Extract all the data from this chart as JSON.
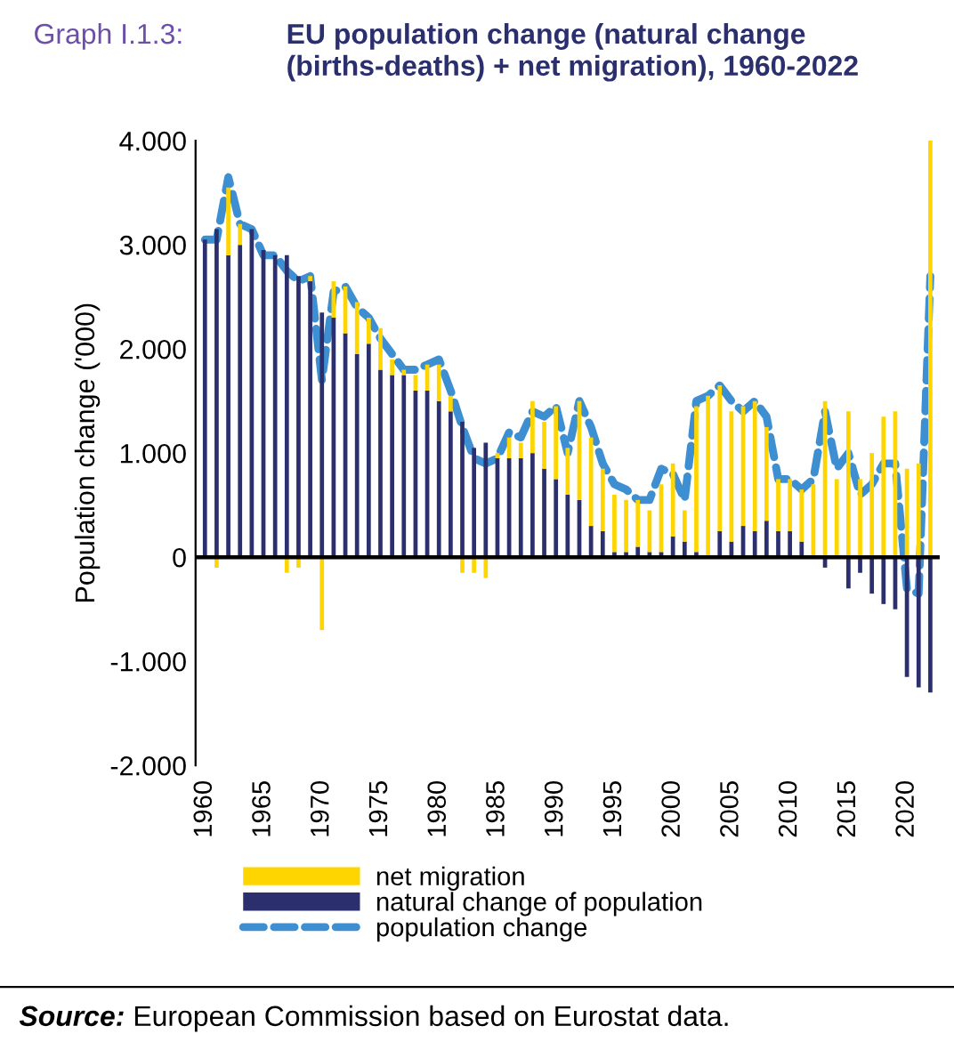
{
  "chart_data": {
    "type": "bar",
    "title": "EU population change (natural change (births-deaths) + net migration), 1960-2022",
    "ylabel": "Population change ('000)",
    "annotations": [
      "Graph I.1.3:",
      "Source: European Commission based on Eurostat data."
    ],
    "categories": [
      "1960",
      null,
      null,
      null,
      null,
      "1965",
      null,
      null,
      null,
      null,
      "1970",
      null,
      null,
      null,
      null,
      "1975",
      null,
      null,
      null,
      null,
      "1980",
      null,
      null,
      null,
      null,
      "1985",
      null,
      null,
      null,
      null,
      "1990",
      null,
      null,
      null,
      null,
      "1995",
      null,
      null,
      null,
      null,
      "2000",
      null,
      null,
      null,
      null,
      "2005",
      null,
      null,
      null,
      null,
      "2010",
      null,
      null,
      null,
      null,
      "2015",
      null,
      null,
      null,
      null,
      "2020",
      null,
      null
    ],
    "stacked": true,
    "series": [
      {
        "name": "natural change of population",
        "color": "#2b2f6e",
        "values": [
          3050,
          3150,
          2900,
          3000,
          3150,
          2950,
          2900,
          2900,
          2700,
          2650,
          2350,
          2300,
          2150,
          1950,
          2050,
          1800,
          1750,
          1750,
          1600,
          1600,
          1500,
          1400,
          1300,
          1050,
          1100,
          950,
          950,
          950,
          1000,
          850,
          750,
          600,
          550,
          300,
          250,
          50,
          50,
          100,
          50,
          50,
          200,
          150,
          50,
          0,
          250,
          150,
          300,
          250,
          350,
          250,
          250,
          150,
          0,
          -100,
          0,
          -300,
          -150,
          -350,
          -450,
          -500,
          -1150,
          -1250,
          -1300
        ]
      },
      {
        "name": "net migration",
        "color": "#ffd500",
        "values": [
          0,
          -100,
          650,
          200,
          0,
          0,
          0,
          -150,
          -100,
          50,
          -700,
          350,
          450,
          500,
          250,
          400,
          150,
          50,
          150,
          250,
          350,
          150,
          -150,
          -150,
          -200,
          50,
          200,
          150,
          500,
          450,
          700,
          450,
          950,
          850,
          600,
          550,
          500,
          450,
          400,
          650,
          700,
          300,
          1400,
          1550,
          1400,
          1250,
          1150,
          1250,
          900,
          500,
          500,
          500,
          700,
          1500,
          750,
          1400,
          750,
          1000,
          1350,
          1400,
          850,
          900,
          4000
        ]
      },
      {
        "name": "population change",
        "type": "line",
        "color": "#3d8fd1",
        "line_style": "dashed",
        "values": [
          3050,
          3050,
          3650,
          3200,
          3150,
          2900,
          2900,
          2750,
          2650,
          2700,
          1700,
          2550,
          2600,
          2400,
          2300,
          2100,
          1950,
          1800,
          1800,
          1850,
          1900,
          1600,
          1250,
          950,
          900,
          950,
          1200,
          1150,
          1400,
          1350,
          1450,
          1000,
          1500,
          1250,
          900,
          700,
          650,
          550,
          550,
          850,
          800,
          550,
          1500,
          1550,
          1650,
          1500,
          1400,
          1500,
          1350,
          750,
          750,
          650,
          750,
          1400,
          850,
          1000,
          600,
          700,
          900,
          900,
          -300,
          -350,
          2700
        ]
      }
    ],
    "ylim": [
      -2000,
      4000
    ],
    "yticks": [
      {
        "value": -2000,
        "label": "-2.000"
      },
      {
        "value": -1000,
        "label": "-1.000"
      },
      0,
      {
        "value": 1000,
        "label": "1.000"
      },
      {
        "value": 2000,
        "label": "2.000"
      },
      {
        "value": 3000,
        "label": "3.000"
      },
      {
        "value": 4000,
        "label": "4.000"
      }
    ],
    "ref_lines": [
      {
        "axis": "y",
        "value": 0,
        "color": "#000000"
      }
    ],
    "grid": false,
    "legend": "bottom"
  }
}
